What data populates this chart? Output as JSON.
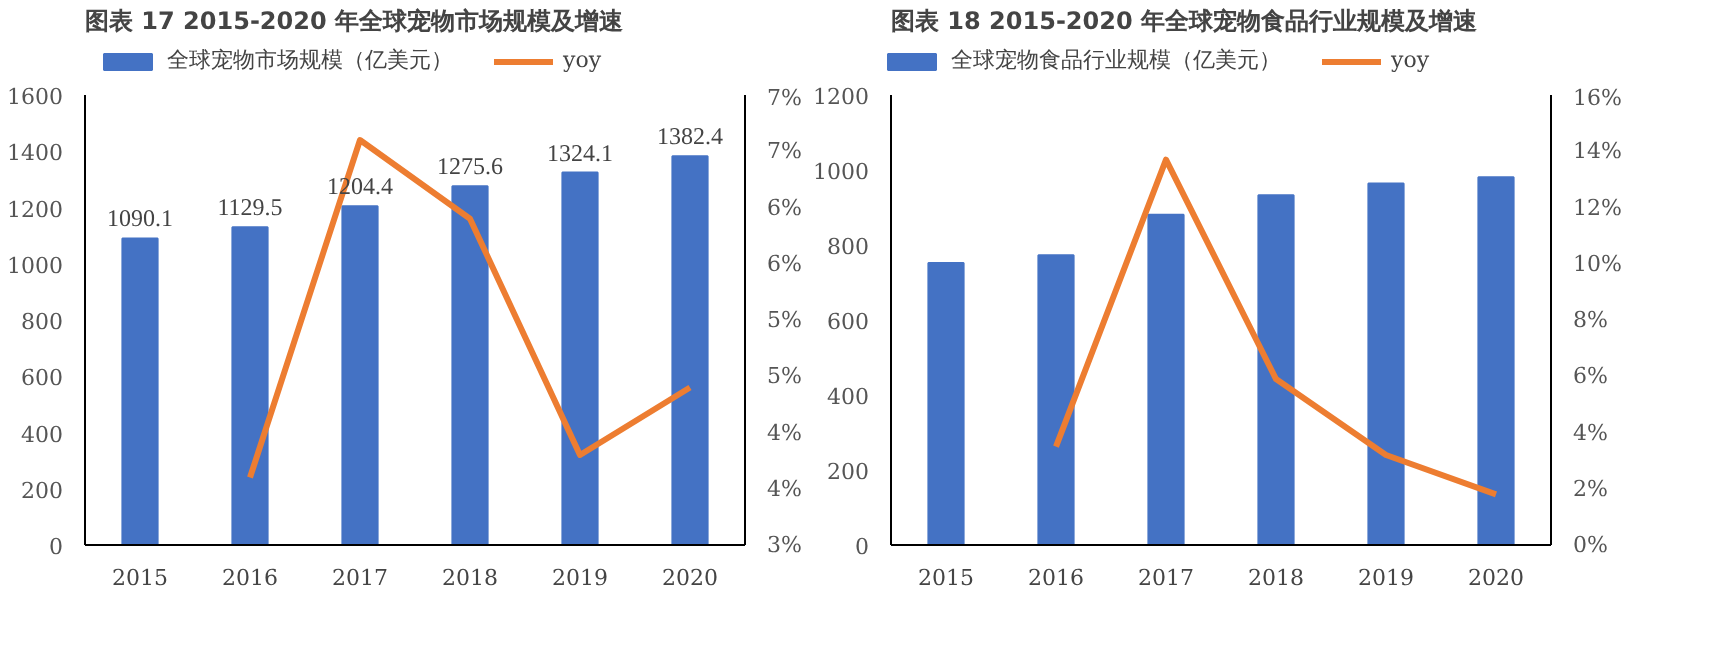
{
  "chart_data": [
    {
      "type": "bar",
      "title": "图表 17 2015-2020 年全球宠物市场规模及增速",
      "categories": [
        "2015",
        "2016",
        "2017",
        "2018",
        "2019",
        "2020"
      ],
      "legend": "top",
      "grid": false,
      "ylim": [
        0,
        1600
      ],
      "yticks": [
        0,
        200,
        400,
        600,
        800,
        1000,
        1200,
        1400,
        1600
      ],
      "y2lim": [
        3,
        7
      ],
      "y2ticks": [
        {
          "value": 3,
          "label": "3%"
        },
        {
          "value": 3.5,
          "label": "4%"
        },
        {
          "value": 4,
          "label": "4%"
        },
        {
          "value": 4.5,
          "label": "5%"
        },
        {
          "value": 5,
          "label": "5%"
        },
        {
          "value": 5.5,
          "label": "6%"
        },
        {
          "value": 6,
          "label": "6%"
        },
        {
          "value": 6.5,
          "label": "7%"
        },
        {
          "value": 7,
          "label": "7%"
        }
      ],
      "series": [
        {
          "name": "全球宠物市场规模（亿美元）",
          "color": "#4472c4",
          "values": [
            1090.1,
            1129.5,
            1204.4,
            1275.6,
            1324.1,
            1382.4
          ],
          "value_labels": [
            "1090.1",
            "1129.5",
            "1204.4",
            "1275.6",
            "1324.1",
            "1382.4"
          ]
        },
        {
          "name": "yoy",
          "type": "line",
          "axis": "y2",
          "color": "#ed7d31",
          "values": [
            null,
            3.6,
            6.6,
            5.9,
            3.8,
            4.4
          ]
        }
      ]
    },
    {
      "type": "bar",
      "title": "图表 18 2015-2020 年全球宠物食品行业规模及增速",
      "categories": [
        "2015",
        "2016",
        "2017",
        "2018",
        "2019",
        "2020"
      ],
      "legend": "top",
      "grid": false,
      "ylim": [
        0,
        1200
      ],
      "yticks": [
        0,
        200,
        400,
        600,
        800,
        1000,
        1200
      ],
      "y2lim": [
        0,
        16
      ],
      "y2ticks": [
        {
          "value": 0,
          "label": "0%"
        },
        {
          "value": 2,
          "label": "2%"
        },
        {
          "value": 4,
          "label": "4%"
        },
        {
          "value": 6,
          "label": "6%"
        },
        {
          "value": 8,
          "label": "8%"
        },
        {
          "value": 10,
          "label": "10%"
        },
        {
          "value": 12,
          "label": "12%"
        },
        {
          "value": 14,
          "label": "14%"
        },
        {
          "value": 16,
          "label": "16%"
        }
      ],
      "series": [
        {
          "name": "全球宠物食品行业规模（亿美元）",
          "color": "#4472c4",
          "values": [
            752,
            773,
            881,
            933,
            964,
            981
          ]
        },
        {
          "name": "yoy",
          "type": "line",
          "axis": "y2",
          "color": "#ed7d31",
          "values": [
            null,
            3.5,
            13.7,
            5.9,
            3.2,
            1.8
          ]
        }
      ]
    }
  ]
}
